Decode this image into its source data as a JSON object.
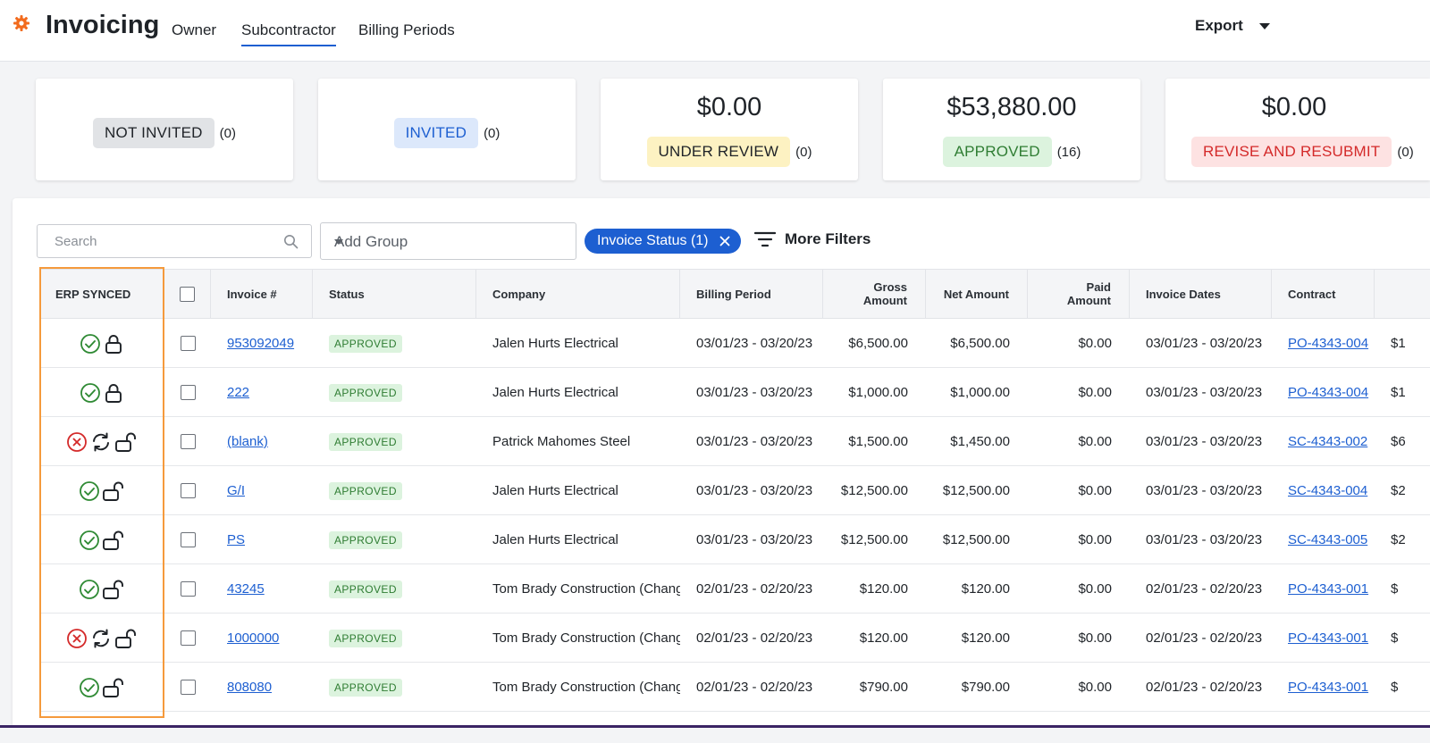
{
  "header": {
    "title": "Invoicing",
    "tabs": [
      {
        "label": "Owner"
      },
      {
        "label": "Subcontractor"
      },
      {
        "label": "Billing Periods"
      }
    ],
    "active_tab": "Subcontractor",
    "export_label": "Export"
  },
  "summary_cards": [
    {
      "amount": "",
      "status": "NOT INVITED",
      "count": "(0)"
    },
    {
      "amount": "",
      "status": "INVITED",
      "count": "(0)"
    },
    {
      "amount": "$0.00",
      "status": "UNDER REVIEW",
      "count": "(0)"
    },
    {
      "amount": "$53,880.00",
      "status": "APPROVED",
      "count": "(16)"
    },
    {
      "amount": "$0.00",
      "status": "REVISE AND RESUBMIT",
      "count": "(0)"
    }
  ],
  "toolbar": {
    "search_placeholder": "Search",
    "group_placeholder": "Add Group",
    "filter_chip": "Invoice Status (1)",
    "more_filters": "More Filters"
  },
  "table": {
    "columns": {
      "erp": "ERP SYNCED",
      "invoice": "Invoice #",
      "status": "Status",
      "company": "Company",
      "billing": "Billing Period",
      "gross": "Gross Amount",
      "net": "Net Amount",
      "paid": "Paid Amount",
      "dates": "Invoice Dates",
      "contract": "Contract"
    },
    "rows": [
      {
        "erp": "synced-locked",
        "invoice": "953092049",
        "status": "APPROVED",
        "company": "Jalen Hurts Electrical",
        "billing": "03/01/23 - 03/20/23",
        "gross": "$6,500.00",
        "net": "$6,500.00",
        "paid": "$0.00",
        "dates": "03/01/23 - 03/20/23",
        "contract": "PO-4343-004",
        "next": "$1"
      },
      {
        "erp": "synced-locked",
        "invoice": "222",
        "status": "APPROVED",
        "company": "Jalen Hurts Electrical",
        "billing": "03/01/23 - 03/20/23",
        "gross": "$1,000.00",
        "net": "$1,000.00",
        "paid": "$0.00",
        "dates": "03/01/23 - 03/20/23",
        "contract": "PO-4343-004",
        "next": "$1"
      },
      {
        "erp": "failed-unlocked",
        "invoice": "(blank)",
        "status": "APPROVED",
        "company": "Patrick Mahomes Steel",
        "billing": "03/01/23 - 03/20/23",
        "gross": "$1,500.00",
        "net": "$1,450.00",
        "paid": "$0.00",
        "dates": "03/01/23 - 03/20/23",
        "contract": "SC-4343-002",
        "next": "$6"
      },
      {
        "erp": "synced-unlocked",
        "invoice": "G/I",
        "status": "APPROVED",
        "company": "Jalen Hurts Electrical",
        "billing": "03/01/23 - 03/20/23",
        "gross": "$12,500.00",
        "net": "$12,500.00",
        "paid": "$0.00",
        "dates": "03/01/23 - 03/20/23",
        "contract": "SC-4343-004",
        "next": "$2"
      },
      {
        "erp": "synced-unlocked",
        "invoice": "PS",
        "status": "APPROVED",
        "company": "Jalen Hurts Electrical",
        "billing": "03/01/23 - 03/20/23",
        "gross": "$12,500.00",
        "net": "$12,500.00",
        "paid": "$0.00",
        "dates": "03/01/23 - 03/20/23",
        "contract": "SC-4343-005",
        "next": "$2"
      },
      {
        "erp": "synced-unlocked",
        "invoice": "43245",
        "status": "APPROVED",
        "company": "Tom Brady Construction (Chang",
        "billing": "02/01/23 - 02/20/23",
        "gross": "$120.00",
        "net": "$120.00",
        "paid": "$0.00",
        "dates": "02/01/23 - 02/20/23",
        "contract": "PO-4343-001",
        "next": "$"
      },
      {
        "erp": "failed-unlocked",
        "invoice": "1000000",
        "status": "APPROVED",
        "company": "Tom Brady Construction (Chang",
        "billing": "02/01/23 - 02/20/23",
        "gross": "$120.00",
        "net": "$120.00",
        "paid": "$0.00",
        "dates": "02/01/23 - 02/20/23",
        "contract": "PO-4343-001",
        "next": "$"
      },
      {
        "erp": "synced-unlocked",
        "invoice": "808080",
        "status": "APPROVED",
        "company": "Tom Brady Construction (Chang",
        "billing": "02/01/23 - 02/20/23",
        "gross": "$790.00",
        "net": "$790.00",
        "paid": "$0.00",
        "dates": "02/01/23 - 02/20/23",
        "contract": "PO-4343-001",
        "next": "$"
      }
    ]
  },
  "icons": {
    "logo": "gear-icon",
    "synced": "check-circle-icon",
    "failed": "x-circle-icon",
    "retry": "sync-icon",
    "locked": "lock-icon",
    "unlocked": "unlock-icon"
  },
  "colors": {
    "brand_orange": "#f26b1d",
    "link_blue": "#1d5fd1",
    "approved_green": "#2f7d33",
    "error_red": "#d42a2a",
    "highlight_orange": "#f59a3c"
  }
}
